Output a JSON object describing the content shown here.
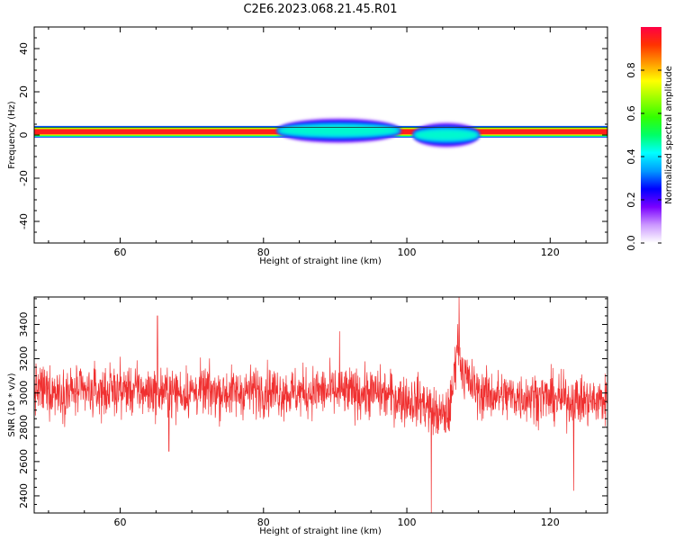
{
  "figure": {
    "title": "C2E6.2023.068.21.45.R01"
  },
  "chart_data": [
    {
      "type": "heatmap",
      "title": "",
      "xlabel": "Height of straight line (km)",
      "ylabel": "Frequency (Hz)",
      "xlim": [
        48,
        128
      ],
      "ylim": [
        -50,
        50
      ],
      "x_ticks": [
        "60",
        "80",
        "100",
        "120"
      ],
      "y_ticks": [
        "-40",
        "-20",
        "0",
        "20",
        "40"
      ],
      "grid": false,
      "features": [
        {
          "x_start": 48,
          "x_end": 128,
          "center_hz": 1.5,
          "halfwidth_hz": 1.5,
          "amplitude": 0.95
        },
        {
          "x_start": 82,
          "x_end": 99,
          "center_hz": 2,
          "halfwidth_hz": 3,
          "amplitude": 0.45
        },
        {
          "x_start": 101,
          "x_end": 110,
          "center_hz": 0,
          "halfwidth_hz": 3,
          "amplitude": 0.45
        }
      ],
      "colorbar": {
        "label": "Normalized spectral amplitude",
        "ticks": [
          "0.0",
          "0.2",
          "0.4",
          "0.6",
          "0.8"
        ],
        "range": [
          0,
          1
        ],
        "colormap": [
          "#ffffff",
          "#cc99ff",
          "#7a00ff",
          "#0000ff",
          "#0099ff",
          "#00ffff",
          "#00ff66",
          "#33ff00",
          "#99ff00",
          "#ffff00",
          "#ff9900",
          "#ff3300",
          "#ff0044"
        ]
      }
    },
    {
      "type": "line",
      "title": "",
      "xlabel": "Height of straight line (km)",
      "ylabel": "SNR (10 * v/v)",
      "xlim": [
        48,
        128
      ],
      "ylim": [
        2300,
        3560
      ],
      "x_ticks": [
        "60",
        "80",
        "100",
        "120"
      ],
      "y_ticks": [
        "2400",
        "2600",
        "2800",
        "3000",
        "3200",
        "3400"
      ],
      "grid": false,
      "series": [
        {
          "color": "#f03030",
          "x": [
            48,
            52,
            56,
            60,
            64,
            68,
            72,
            76,
            80,
            84,
            88,
            92,
            96,
            100,
            102,
            103,
            104,
            105,
            106,
            106.5,
            107,
            107.5,
            108,
            109,
            110,
            114,
            118,
            122,
            126,
            128
          ],
          "baseline": [
            3020,
            3010,
            3000,
            3020,
            3010,
            3000,
            3010,
            3000,
            3020,
            3000,
            3010,
            3000,
            3000,
            2960,
            2950,
            2920,
            2880,
            2860,
            2900,
            3050,
            3300,
            3200,
            3100,
            3050,
            3000,
            2980,
            2980,
            2960,
            2950,
            2960
          ],
          "noise_amplitude": 140,
          "peaks": [
            {
              "x": 65.2,
              "y": 3450
            },
            {
              "x": 66.8,
              "y": 2660
            },
            {
              "x": 90.6,
              "y": 3360
            },
            {
              "x": 103.4,
              "y": 2300
            },
            {
              "x": 107.3,
              "y": 3560
            },
            {
              "x": 123.3,
              "y": 2430
            }
          ]
        }
      ]
    }
  ]
}
